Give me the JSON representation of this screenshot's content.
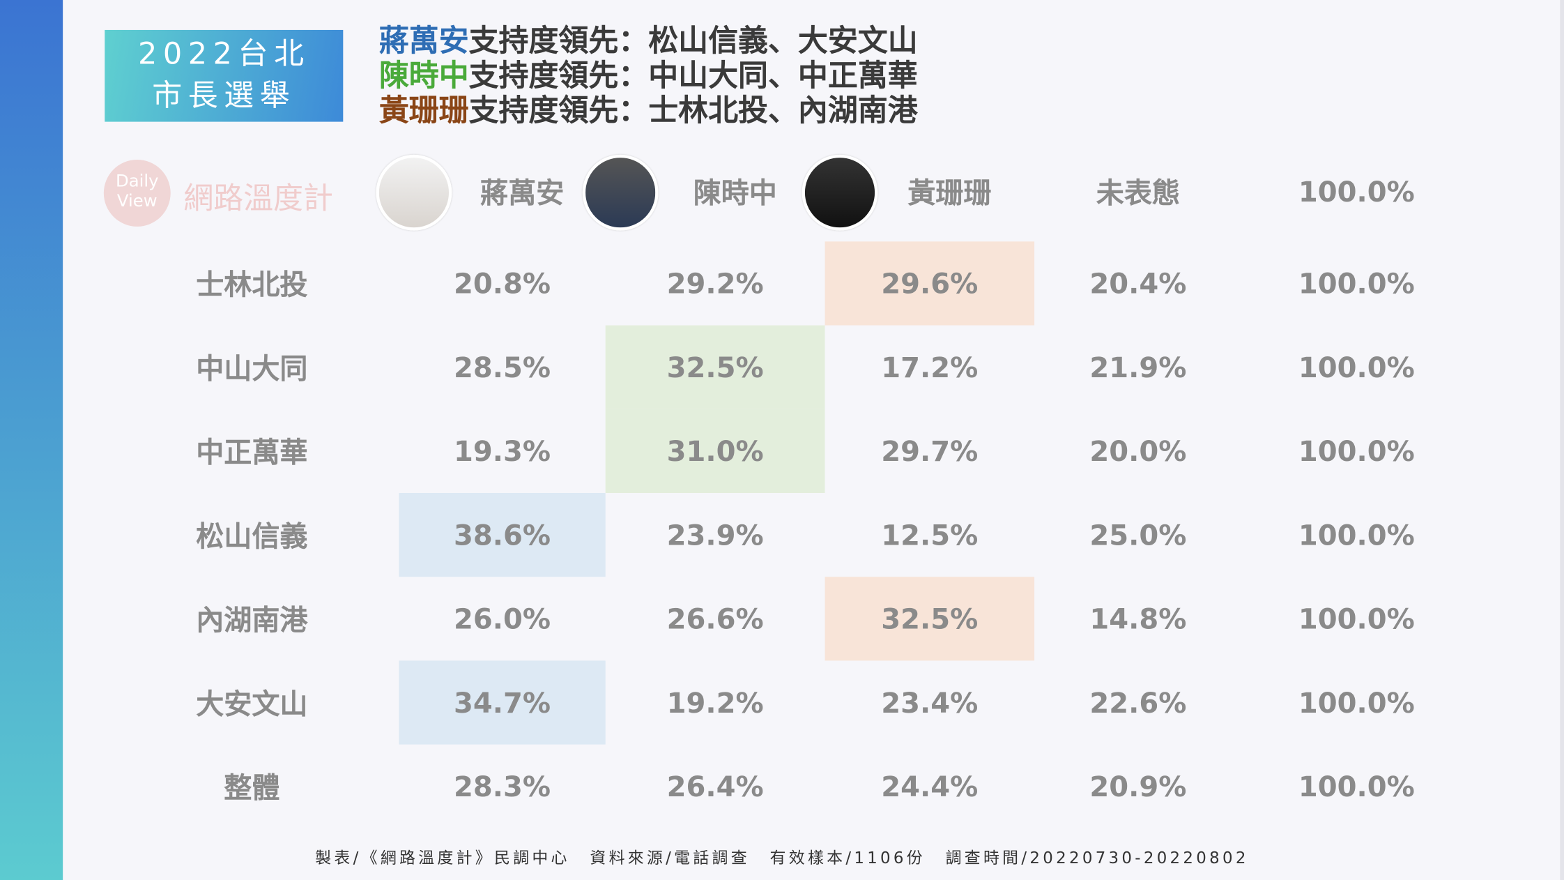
{
  "badge": {
    "lines": [
      "2022台北",
      "市長選舉"
    ]
  },
  "headline": [
    {
      "name": "蔣萬安",
      "text": "支持度領先：松山信義、大安文山",
      "color": "#2e6db4"
    },
    {
      "name": "陳時中",
      "text": "支持度領先：中山大同、中正萬華",
      "color": "#4aaa3a"
    },
    {
      "name": "黃珊珊",
      "text": "支持度領先：士林北投、內湖南港",
      "color": "#8a4516"
    }
  ],
  "logo": {
    "badge": [
      "Daily",
      "View"
    ],
    "name": "網路溫度計"
  },
  "table": {
    "columns": [
      "蔣萬安",
      "陳時中",
      "黃珊珊",
      "未表態",
      "100.0%"
    ],
    "highlight_colors": [
      "#dde9f4",
      "#e3eedc",
      "#f8e4d8"
    ],
    "rows": [
      {
        "label": "士林北投",
        "cells": [
          "20.8%",
          "29.2%",
          "29.6%",
          "20.4%",
          "100.0%"
        ],
        "highlight": 2
      },
      {
        "label": "中山大同",
        "cells": [
          "28.5%",
          "32.5%",
          "17.2%",
          "21.9%",
          "100.0%"
        ],
        "highlight": 1
      },
      {
        "label": "中正萬華",
        "cells": [
          "19.3%",
          "31.0%",
          "29.7%",
          "20.0%",
          "100.0%"
        ],
        "highlight": 1
      },
      {
        "label": "松山信義",
        "cells": [
          "38.6%",
          "23.9%",
          "12.5%",
          "25.0%",
          "100.0%"
        ],
        "highlight": 0
      },
      {
        "label": "內湖南港",
        "cells": [
          "26.0%",
          "26.6%",
          "32.5%",
          "14.8%",
          "100.0%"
        ],
        "highlight": 2
      },
      {
        "label": "大安文山",
        "cells": [
          "34.7%",
          "19.2%",
          "23.4%",
          "22.6%",
          "100.0%"
        ],
        "highlight": 0
      },
      {
        "label": "整體",
        "cells": [
          "28.3%",
          "26.4%",
          "24.4%",
          "20.9%",
          "100.0%"
        ]
      }
    ]
  },
  "footer": [
    "製表/《網路溫度計》民調中心",
    "資料來源/電話調查",
    "有效樣本/1106份",
    "調查時間/20220730-20220802"
  ]
}
